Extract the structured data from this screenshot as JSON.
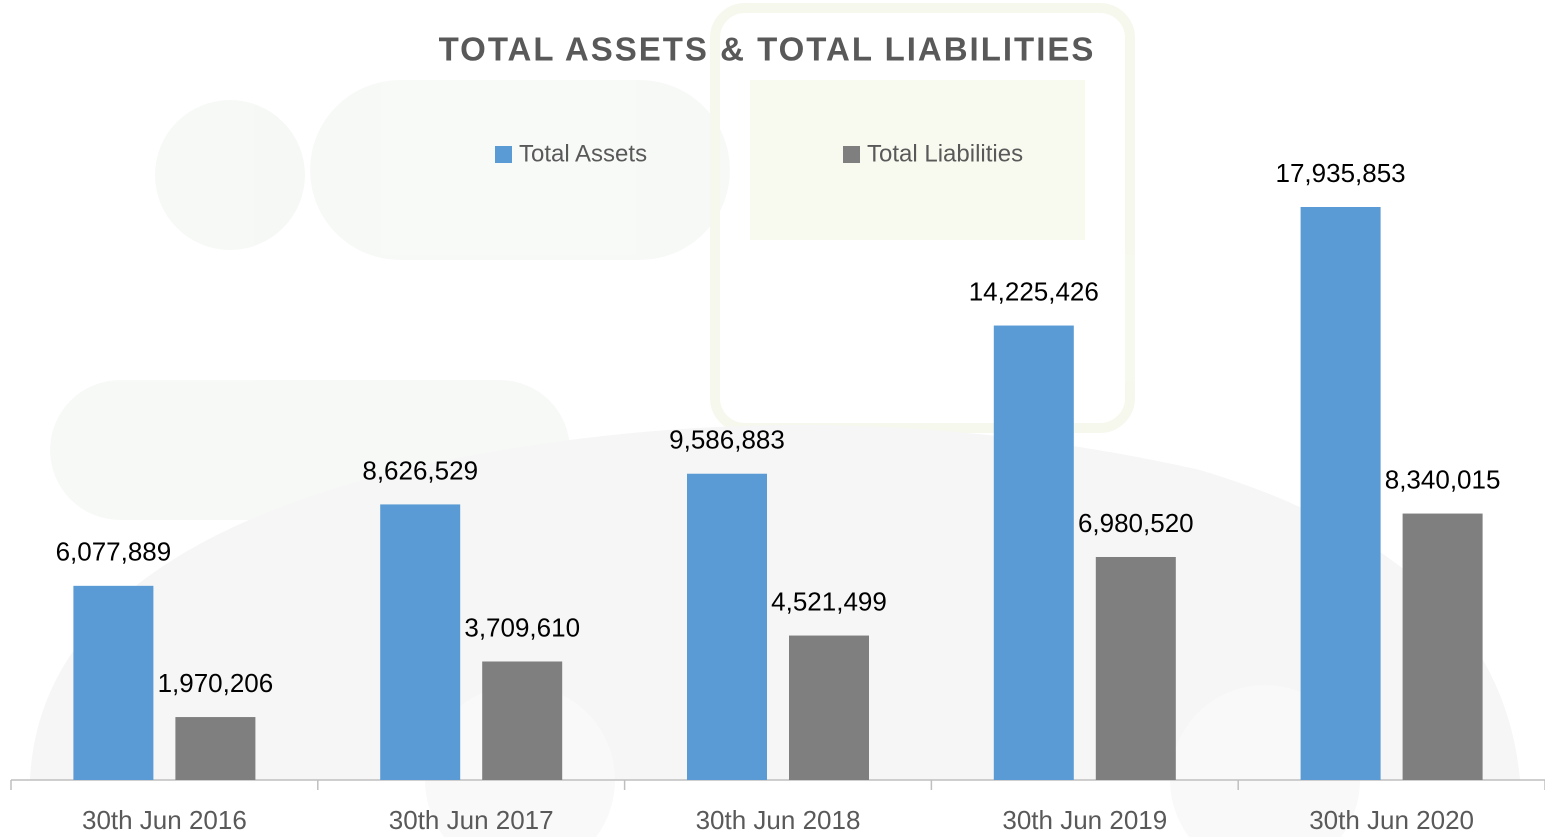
{
  "chart_data": {
    "type": "bar",
    "title": "TOTAL ASSETS & TOTAL LIABILITIES",
    "categories": [
      "30th Jun 2016",
      "30th Jun 2017",
      "30th Jun 2018",
      "30th Jun 2019",
      "30th Jun 2020"
    ],
    "series": [
      {
        "name": "Total Assets",
        "color": "#5b9bd5",
        "values": [
          6077889,
          8626529,
          9586883,
          14225426,
          17935853
        ],
        "value_labels": [
          "6,077,889",
          "8,626,529",
          "9,586,883",
          "14,225,426",
          "17,935,853"
        ]
      },
      {
        "name": "Total Liabilities",
        "color": "#7f7f7f",
        "values": [
          1970206,
          3709610,
          4521499,
          6980520,
          8340015
        ],
        "value_labels": [
          "1,970,206",
          "3,709,610",
          "4,521,499",
          "6,980,520",
          "8,340,015"
        ]
      }
    ],
    "legend": "top"
  }
}
